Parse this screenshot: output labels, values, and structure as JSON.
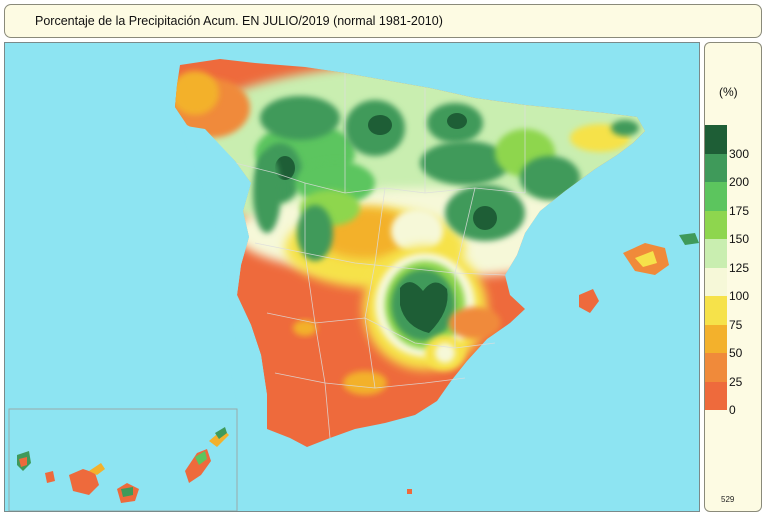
{
  "title": "Porcentaje de la Precipitación Acum. EN  JULIO/2019  (normal 1981-2010)",
  "legend": {
    "unit": "(%)",
    "classes": [
      {
        "label": "300",
        "color": "#1e5e36"
      },
      {
        "label": "200",
        "color": "#3f9a5a"
      },
      {
        "label": "175",
        "color": "#5cc55e"
      },
      {
        "label": "150",
        "color": "#8ed64e"
      },
      {
        "label": "125",
        "color": "#c9eeb0"
      },
      {
        "label": "100",
        "color": "#f6f8d8"
      },
      {
        "label": "75",
        "color": "#f6e24a"
      },
      {
        "label": "50",
        "color": "#f3b12c"
      },
      {
        "label": "25",
        "color": "#f08a3a"
      },
      {
        "label": "0",
        "color": "#ee6a3c"
      }
    ],
    "code": "529"
  },
  "colors": {
    "sea": "#8de4f2",
    "land_dry": "#ee6a3c",
    "border_lines": "#dddddd"
  }
}
